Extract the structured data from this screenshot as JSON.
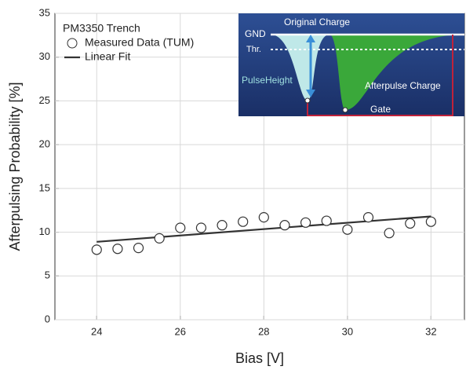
{
  "chart_data": {
    "type": "scatter",
    "title": "PM3350 Trench",
    "xlabel": "Bias [V]",
    "ylabel": "Afterpulsing Probability [%]",
    "xlim": [
      23,
      32.8
    ],
    "ylim": [
      0,
      35
    ],
    "xticks": [
      24,
      26,
      28,
      30,
      32
    ],
    "yticks": [
      0,
      5,
      10,
      15,
      20,
      25,
      30,
      35
    ],
    "grid": true,
    "legend": "top-left",
    "series": [
      {
        "name": "Measured Data (TUM)",
        "type": "scatter",
        "color": "#333333",
        "x": [
          24,
          24.5,
          25,
          25.5,
          26,
          26.5,
          27,
          27.5,
          28,
          28.5,
          29,
          29.5,
          30,
          30.5,
          31,
          31.5,
          32
        ],
        "values": [
          8.0,
          8.1,
          8.2,
          9.3,
          10.5,
          10.5,
          10.8,
          11.2,
          11.7,
          10.8,
          11.1,
          11.3,
          10.3,
          11.7,
          9.9,
          11.0,
          11.2
        ]
      },
      {
        "name": "Linear Fit",
        "type": "line",
        "color": "#333333",
        "x": [
          24,
          32
        ],
        "values": [
          8.9,
          11.8
        ]
      }
    ],
    "inset_labels": [
      "Original Charge",
      "GND",
      "Thr.",
      "PulseHeight",
      "Afterpulse Charge",
      "Gate"
    ]
  }
}
